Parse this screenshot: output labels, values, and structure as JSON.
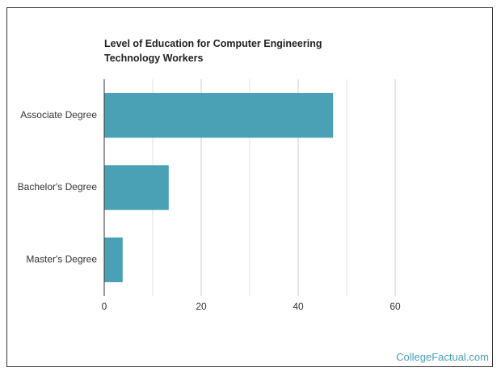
{
  "chart_data": {
    "type": "hbar",
    "title": "Level of Education for Computer Engineering Technology Workers",
    "categories": [
      "Associate Degree",
      "Bachelor's Degree",
      "Master's Degree"
    ],
    "values": [
      47.2,
      13.3,
      3.8
    ],
    "color": "#4aa0b5",
    "xlim": [
      0,
      60
    ],
    "xticks": [
      0,
      20,
      40,
      60
    ],
    "minor_xticks": [
      10,
      30,
      50
    ],
    "grid": true
  },
  "watermark": "CollegeFactual.com"
}
